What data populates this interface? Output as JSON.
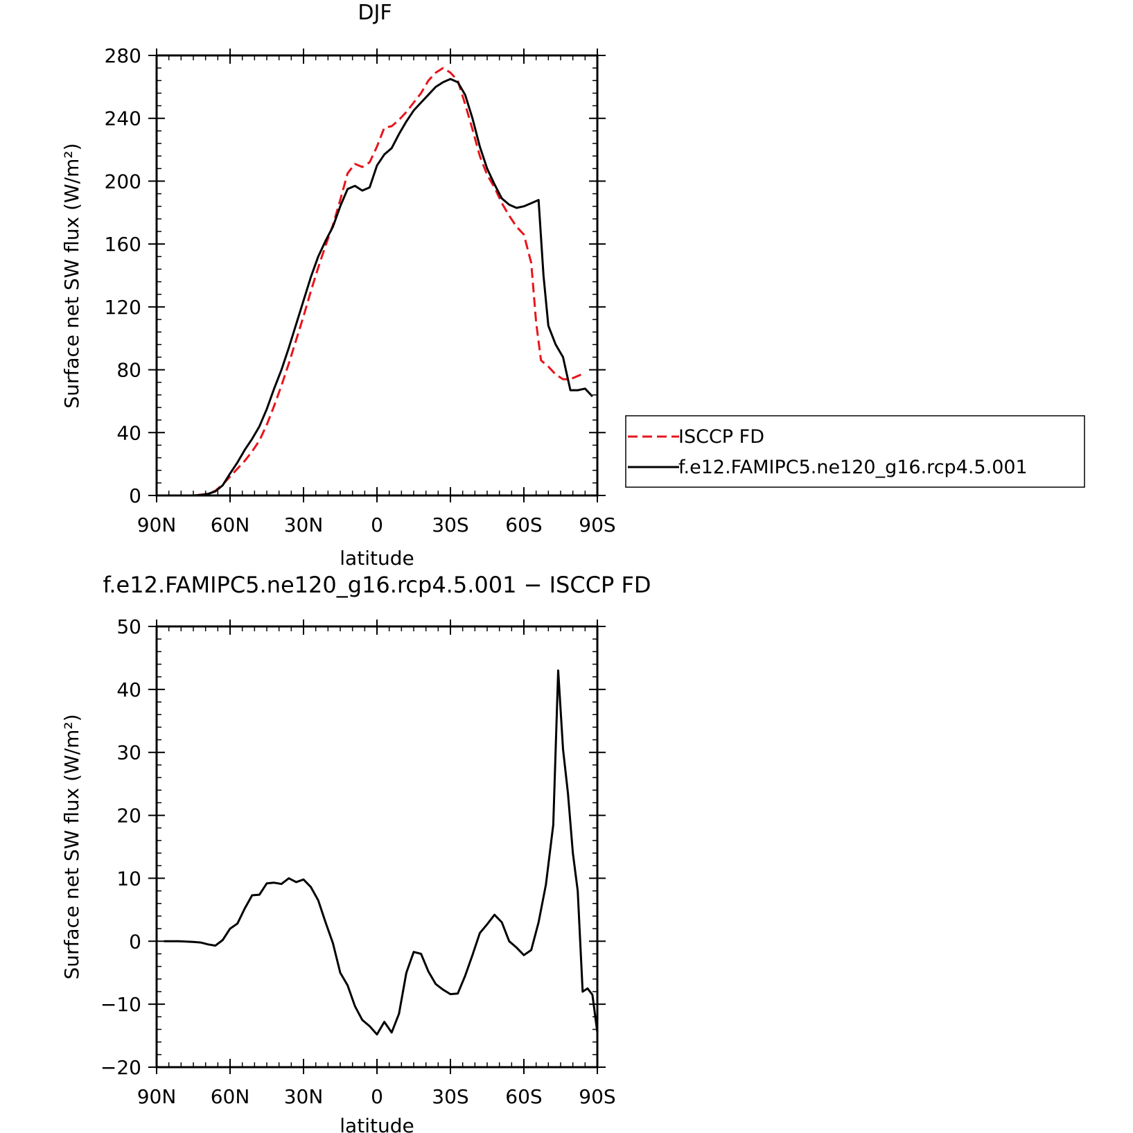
{
  "chart_data": [
    {
      "type": "line",
      "title": "DJF",
      "xlabel": "latitude",
      "ylabel": "Surface net SW flux (W/m²)",
      "xlim": [
        90,
        -90
      ],
      "ylim": [
        0,
        280
      ],
      "x_ticks": [
        90,
        60,
        30,
        0,
        -30,
        -60,
        -90
      ],
      "x_tick_labels": [
        "90N",
        "60N",
        "30N",
        "0",
        "30S",
        "60S",
        "90S"
      ],
      "y_ticks": [
        0,
        40,
        80,
        120,
        160,
        200,
        240,
        280
      ],
      "y_tick_labels": [
        "0",
        "40",
        "80",
        "120",
        "160",
        "200",
        "240",
        "280"
      ],
      "legend_position": "right",
      "series": [
        {
          "name": "ISCCP FD",
          "color": "#e8141b",
          "style": "dashed",
          "points": [
            [
              79,
              0
            ],
            [
              75,
              0
            ],
            [
              72,
              0.5
            ],
            [
              69,
              1
            ],
            [
              66,
              3
            ],
            [
              63,
              7
            ],
            [
              60,
              12
            ],
            [
              57,
              17
            ],
            [
              54,
              22
            ],
            [
              51,
              28
            ],
            [
              48,
              35
            ],
            [
              45,
              45
            ],
            [
              42,
              57
            ],
            [
              39,
              70
            ],
            [
              36,
              84
            ],
            [
              33,
              99
            ],
            [
              30,
              114
            ],
            [
              27,
              130
            ],
            [
              24,
              145
            ],
            [
              21,
              159
            ],
            [
              18,
              172
            ],
            [
              15,
              188
            ],
            [
              12,
              205
            ],
            [
              9,
              211
            ],
            [
              6,
              209
            ],
            [
              3,
              212
            ],
            [
              0,
              222
            ],
            [
              -3,
              234
            ],
            [
              -6,
              235
            ],
            [
              -9,
              239
            ],
            [
              -12,
              244
            ],
            [
              -15,
              250
            ],
            [
              -18,
              256
            ],
            [
              -21,
              264
            ],
            [
              -24,
              269
            ],
            [
              -27,
              272
            ],
            [
              -30,
              269
            ],
            [
              -33,
              264
            ],
            [
              -36,
              249
            ],
            [
              -39,
              233
            ],
            [
              -42,
              216
            ],
            [
              -45,
              204
            ],
            [
              -48,
              196
            ],
            [
              -51,
              186
            ],
            [
              -54,
              178
            ],
            [
              -57,
              171
            ],
            [
              -60,
              166
            ],
            [
              -63,
              148
            ],
            [
              -65,
              110
            ],
            [
              -67,
              86
            ],
            [
              -70,
              82
            ],
            [
              -73,
              77
            ],
            [
              -76,
              74
            ],
            [
              -79,
              74
            ],
            [
              -82,
              76
            ],
            [
              -85,
              78
            ]
          ]
        },
        {
          "name": "f.e12.FAMIPC5.ne120_g16.rcp4.5.001",
          "color": "#000000",
          "style": "solid",
          "points": [
            [
              79,
              0
            ],
            [
              75,
              0
            ],
            [
              72,
              0.3
            ],
            [
              69,
              1
            ],
            [
              66,
              2.6
            ],
            [
              63,
              6.5
            ],
            [
              60,
              14
            ],
            [
              57,
              21
            ],
            [
              54,
              29
            ],
            [
              51,
              36
            ],
            [
              48,
              44
            ],
            [
              45,
              55
            ],
            [
              42,
              68
            ],
            [
              39,
              80
            ],
            [
              36,
              94
            ],
            [
              33,
              109
            ],
            [
              30,
              124
            ],
            [
              27,
              139
            ],
            [
              24,
              152
            ],
            [
              21,
              162
            ],
            [
              18,
              171
            ],
            [
              15,
              184
            ],
            [
              12,
              195
            ],
            [
              9,
              197
            ],
            [
              6,
              194
            ],
            [
              3,
              196
            ],
            [
              0,
              210
            ],
            [
              -3,
              217
            ],
            [
              -6,
              221
            ],
            [
              -9,
              230
            ],
            [
              -12,
              238
            ],
            [
              -15,
              245
            ],
            [
              -18,
              250
            ],
            [
              -21,
              255
            ],
            [
              -24,
              260
            ],
            [
              -27,
              263
            ],
            [
              -30,
              265
            ],
            [
              -33,
              263
            ],
            [
              -36,
              255
            ],
            [
              -39,
              240
            ],
            [
              -42,
              222
            ],
            [
              -45,
              208
            ],
            [
              -48,
              198
            ],
            [
              -51,
              189
            ],
            [
              -54,
              185
            ],
            [
              -57,
              183
            ],
            [
              -60,
              184
            ],
            [
              -63,
              186
            ],
            [
              -66,
              188
            ],
            [
              -68,
              140
            ],
            [
              -70,
              108
            ],
            [
              -73,
              96
            ],
            [
              -76,
              88
            ],
            [
              -79,
              67
            ],
            [
              -82,
              67
            ],
            [
              -85,
              68
            ],
            [
              -88,
              63
            ]
          ]
        }
      ]
    },
    {
      "type": "line",
      "title": "f.e12.FAMIPC5.ne120_g16.rcp4.5.001 − ISCCP FD",
      "xlabel": "latitude",
      "ylabel": "Surface net SW flux (W/m²)",
      "xlim": [
        90,
        -90
      ],
      "ylim": [
        -20,
        50
      ],
      "x_ticks": [
        90,
        60,
        30,
        0,
        -30,
        -60,
        -90
      ],
      "x_tick_labels": [
        "90N",
        "60N",
        "30N",
        "0",
        "30S",
        "60S",
        "90S"
      ],
      "y_ticks": [
        -20,
        -10,
        0,
        10,
        20,
        30,
        40,
        50
      ],
      "y_tick_labels": [
        "−20",
        "−10",
        "0",
        "10",
        "20",
        "30",
        "40",
        "50"
      ],
      "series": [
        {
          "color": "#000000",
          "style": "solid",
          "points": [
            [
              87,
              0
            ],
            [
              81,
              0
            ],
            [
              75,
              -0.1
            ],
            [
              72,
              -0.2
            ],
            [
              69,
              -0.5
            ],
            [
              66,
              -0.7
            ],
            [
              63,
              0.2
            ],
            [
              60,
              2
            ],
            [
              57,
              2.8
            ],
            [
              54,
              5.2
            ],
            [
              51,
              7.3
            ],
            [
              48,
              7.4
            ],
            [
              45,
              9.2
            ],
            [
              42,
              9.3
            ],
            [
              39,
              9.1
            ],
            [
              36,
              10
            ],
            [
              33,
              9.4
            ],
            [
              30,
              9.8
            ],
            [
              27,
              8.6
            ],
            [
              24,
              6.5
            ],
            [
              21,
              3
            ],
            [
              18,
              -0.3
            ],
            [
              15,
              -5
            ],
            [
              12,
              -7
            ],
            [
              9,
              -10.3
            ],
            [
              6,
              -12.5
            ],
            [
              3,
              -13.5
            ],
            [
              0,
              -14.8
            ],
            [
              -3,
              -12.8
            ],
            [
              -6,
              -14.5
            ],
            [
              -9,
              -11.5
            ],
            [
              -12,
              -5
            ],
            [
              -15,
              -1.7
            ],
            [
              -18,
              -2
            ],
            [
              -21,
              -4.8
            ],
            [
              -24,
              -6.8
            ],
            [
              -27,
              -7.7
            ],
            [
              -30,
              -8.4
            ],
            [
              -33,
              -8.3
            ],
            [
              -36,
              -5.5
            ],
            [
              -39,
              -2.2
            ],
            [
              -42,
              1.3
            ],
            [
              -45,
              2.7
            ],
            [
              -48,
              4.2
            ],
            [
              -51,
              3
            ],
            [
              -54,
              0
            ],
            [
              -57,
              -1
            ],
            [
              -60,
              -2.2
            ],
            [
              -63,
              -1.4
            ],
            [
              -66,
              3
            ],
            [
              -69,
              9
            ],
            [
              -72,
              18.5
            ],
            [
              -74,
              43
            ],
            [
              -76,
              30.5
            ],
            [
              -78,
              23.5
            ],
            [
              -80,
              14
            ],
            [
              -82,
              8
            ],
            [
              -84,
              -8
            ],
            [
              -86,
              -7.5
            ],
            [
              -88,
              -8.5
            ],
            [
              -90,
              -14.5
            ]
          ]
        }
      ]
    }
  ]
}
